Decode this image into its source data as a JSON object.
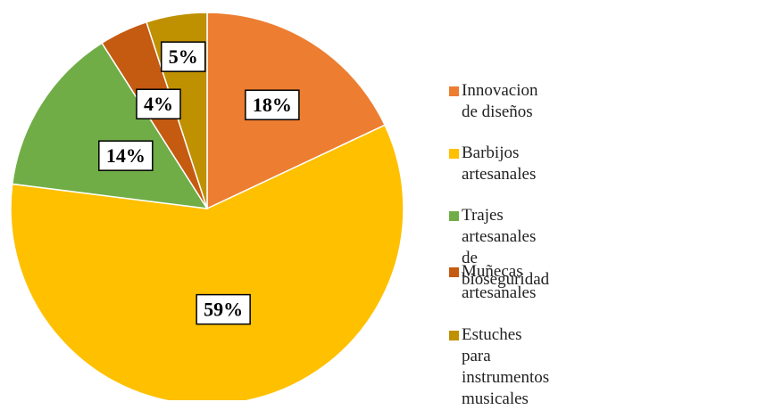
{
  "chart_data": {
    "type": "pie",
    "categories": [
      "Innovacion de diseños",
      "Barbijos artesanales",
      "Trajes artesanales de bioseguridad",
      "Muñecas artesanales",
      "Estuches para\ninstrumentos musicales"
    ],
    "values": [
      18,
      59,
      14,
      4,
      5
    ],
    "value_labels": [
      "18%",
      "59%",
      "14%",
      "4%",
      "5%"
    ],
    "colors": [
      "#ED7D31",
      "#FFC000",
      "#70AD47",
      "#C55A11",
      "#BF9000"
    ],
    "legend": "right"
  }
}
